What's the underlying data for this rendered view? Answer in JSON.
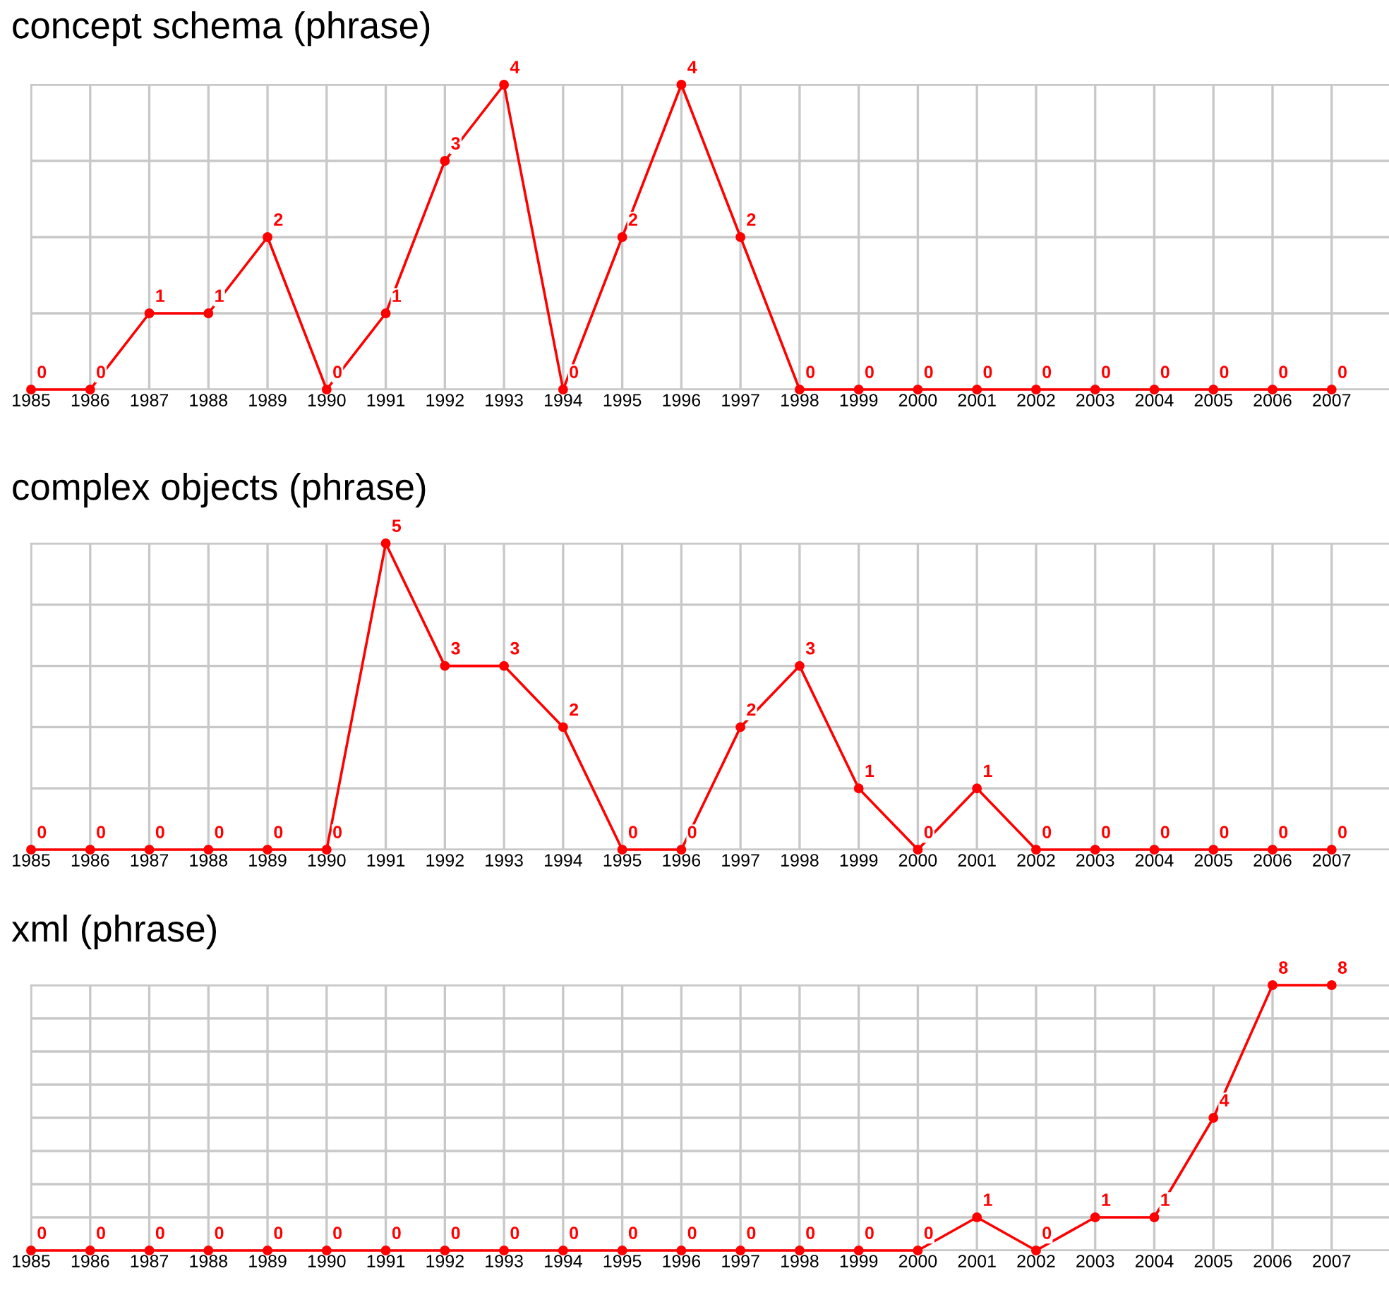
{
  "chart_data": [
    {
      "type": "line",
      "title": "concept schema (phrase)",
      "categories": [
        "1985",
        "1986",
        "1987",
        "1988",
        "1989",
        "1990",
        "1991",
        "1992",
        "1993",
        "1994",
        "1995",
        "1996",
        "1997",
        "1998",
        "1999",
        "2000",
        "2001",
        "2002",
        "2003",
        "2004",
        "2005",
        "2006",
        "2007"
      ],
      "series": [
        {
          "color": "#ff0000",
          "values": [
            0,
            0,
            1,
            1,
            2,
            0,
            1,
            3,
            4,
            0,
            2,
            4,
            2,
            0,
            0,
            0,
            0,
            0,
            0,
            0,
            0,
            0,
            0
          ]
        }
      ],
      "ylim": [
        0,
        4
      ],
      "yticks": [
        {
          "value": 0,
          "label": null
        },
        {
          "value": 1,
          "label": null
        },
        {
          "value": 2,
          "label": null
        },
        {
          "value": 3,
          "label": null
        },
        {
          "value": 4,
          "label": null
        }
      ],
      "grid": true,
      "tick_labels": "x",
      "data_labels": true,
      "marker": "circle",
      "line_style": "solid",
      "legend": false
    },
    {
      "type": "line",
      "title": "complex objects (phrase)",
      "categories": [
        "1985",
        "1986",
        "1987",
        "1988",
        "1989",
        "1990",
        "1991",
        "1992",
        "1993",
        "1994",
        "1995",
        "1996",
        "1997",
        "1998",
        "1999",
        "2000",
        "2001",
        "2002",
        "2003",
        "2004",
        "2005",
        "2006",
        "2007"
      ],
      "series": [
        {
          "color": "#ff0000",
          "values": [
            0,
            0,
            0,
            0,
            0,
            0,
            5,
            3,
            3,
            2,
            0,
            0,
            2,
            3,
            1,
            0,
            1,
            0,
            0,
            0,
            0,
            0,
            0
          ]
        }
      ],
      "ylim": [
        0,
        5
      ],
      "yticks": [
        {
          "value": 0,
          "label": null
        },
        {
          "value": 1,
          "label": null
        },
        {
          "value": 2,
          "label": null
        },
        {
          "value": 3,
          "label": null
        },
        {
          "value": 4,
          "label": null
        },
        {
          "value": 5,
          "label": null
        }
      ],
      "grid": true,
      "tick_labels": "x",
      "data_labels": true,
      "marker": "circle",
      "line_style": "solid",
      "legend": false
    },
    {
      "type": "line",
      "title": "xml (phrase)",
      "categories": [
        "1985",
        "1986",
        "1987",
        "1988",
        "1989",
        "1990",
        "1991",
        "1992",
        "1993",
        "1994",
        "1995",
        "1996",
        "1997",
        "1998",
        "1999",
        "2000",
        "2001",
        "2002",
        "2003",
        "2004",
        "2005",
        "2006",
        "2007"
      ],
      "series": [
        {
          "color": "#ff0000",
          "values": [
            0,
            0,
            0,
            0,
            0,
            0,
            0,
            0,
            0,
            0,
            0,
            0,
            0,
            0,
            0,
            0,
            1,
            0,
            1,
            1,
            4,
            8,
            8
          ]
        }
      ],
      "ylim": [
        0,
        8
      ],
      "yticks": [
        {
          "value": 0,
          "label": null
        },
        {
          "value": 1,
          "label": null
        },
        {
          "value": 2,
          "label": null
        },
        {
          "value": 3,
          "label": null
        },
        {
          "value": 4,
          "label": null
        },
        {
          "value": 5,
          "label": null
        },
        {
          "value": 6,
          "label": null
        },
        {
          "value": 7,
          "label": null
        },
        {
          "value": 8,
          "label": null
        }
      ],
      "grid": true,
      "tick_labels": "x",
      "data_labels": true,
      "marker": "circle",
      "line_style": "solid",
      "legend": false
    }
  ]
}
